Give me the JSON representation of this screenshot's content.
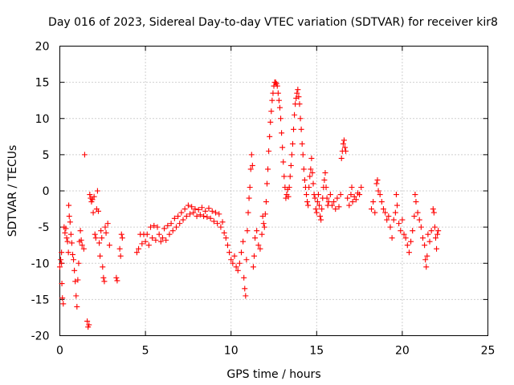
{
  "chart_data": {
    "type": "scatter",
    "title": "Day 016 of 2023, Sidereal Day-to-day VTEC variation (SDTVAR) for receiver kir8",
    "xlabel": "GPS time / hours",
    "ylabel": "SDTVAR / TECUs",
    "xlim": [
      0,
      25
    ],
    "ylim": [
      -20,
      20
    ],
    "x_ticks": [
      0,
      5,
      10,
      15,
      20,
      25
    ],
    "y_ticks": [
      -20,
      -15,
      -10,
      -5,
      0,
      5,
      10,
      15,
      20
    ],
    "x_tick_labels": [
      "0",
      "5",
      "10",
      "15",
      "20",
      "25"
    ],
    "y_tick_labels": [
      "-20",
      "-15",
      "-10",
      "-5",
      "0",
      "5",
      "10",
      "15",
      "20"
    ],
    "grid": true,
    "marker": "+",
    "series_color": "#ff0000",
    "points": [
      [
        0.0,
        -10.5
      ],
      [
        0.05,
        -9.5
      ],
      [
        0.1,
        -10.0
      ],
      [
        0.1,
        -8.5
      ],
      [
        0.12,
        -12.8
      ],
      [
        0.15,
        -14.8
      ],
      [
        0.2,
        -15.6
      ],
      [
        0.25,
        -5.0
      ],
      [
        0.3,
        -5.8
      ],
      [
        0.35,
        -5.2
      ],
      [
        0.4,
        -6.5
      ],
      [
        0.45,
        -7.0
      ],
      [
        0.5,
        -8.5
      ],
      [
        0.52,
        -2.0
      ],
      [
        0.55,
        -3.5
      ],
      [
        0.6,
        -4.3
      ],
      [
        0.65,
        -6.0
      ],
      [
        0.7,
        -7.2
      ],
      [
        0.75,
        -8.8
      ],
      [
        0.8,
        -9.5
      ],
      [
        0.85,
        -11.0
      ],
      [
        0.9,
        -12.5
      ],
      [
        0.95,
        -14.5
      ],
      [
        1.0,
        -16.0
      ],
      [
        1.05,
        -12.3
      ],
      [
        1.1,
        -10.0
      ],
      [
        1.15,
        -7.0
      ],
      [
        1.2,
        -5.5
      ],
      [
        1.25,
        -6.8
      ],
      [
        1.3,
        -7.5
      ],
      [
        1.4,
        -8.0
      ],
      [
        1.45,
        5.0
      ],
      [
        1.6,
        -18.0
      ],
      [
        1.65,
        -18.8
      ],
      [
        1.7,
        -18.5
      ],
      [
        1.75,
        -0.5
      ],
      [
        1.8,
        -1.0
      ],
      [
        1.85,
        -1.5
      ],
      [
        1.9,
        -1.2
      ],
      [
        1.95,
        -3.0
      ],
      [
        2.0,
        -0.8
      ],
      [
        2.05,
        -6.0
      ],
      [
        2.1,
        -6.5
      ],
      [
        2.15,
        -2.5
      ],
      [
        2.2,
        0.0
      ],
      [
        2.25,
        -2.8
      ],
      [
        2.3,
        -7.2
      ],
      [
        2.35,
        -9.0
      ],
      [
        2.4,
        -5.5
      ],
      [
        2.45,
        -6.5
      ],
      [
        2.5,
        -10.5
      ],
      [
        2.55,
        -12.0
      ],
      [
        2.6,
        -12.5
      ],
      [
        2.65,
        -5.0
      ],
      [
        2.7,
        -5.8
      ],
      [
        2.8,
        -4.5
      ],
      [
        2.9,
        -7.5
      ],
      [
        3.3,
        -12.0
      ],
      [
        3.35,
        -12.4
      ],
      [
        3.5,
        -8.0
      ],
      [
        3.55,
        -9.0
      ],
      [
        3.6,
        -6.0
      ],
      [
        3.65,
        -6.5
      ],
      [
        4.5,
        -8.5
      ],
      [
        4.6,
        -8.0
      ],
      [
        4.7,
        -6.0
      ],
      [
        4.8,
        -7.3
      ],
      [
        4.9,
        -6.0
      ],
      [
        5.0,
        -7.0
      ],
      [
        5.1,
        -6.0
      ],
      [
        5.2,
        -7.5
      ],
      [
        5.3,
        -5.0
      ],
      [
        5.4,
        -6.5
      ],
      [
        5.5,
        -4.8
      ],
      [
        5.6,
        -6.8
      ],
      [
        5.7,
        -5.0
      ],
      [
        5.8,
        -6.0
      ],
      [
        5.9,
        -7.0
      ],
      [
        6.0,
        -6.5
      ],
      [
        6.1,
        -5.2
      ],
      [
        6.2,
        -6.8
      ],
      [
        6.3,
        -4.8
      ],
      [
        6.4,
        -6.0
      ],
      [
        6.5,
        -4.5
      ],
      [
        6.6,
        -5.5
      ],
      [
        6.7,
        -3.8
      ],
      [
        6.8,
        -5.0
      ],
      [
        6.9,
        -3.5
      ],
      [
        7.0,
        -4.5
      ],
      [
        7.1,
        -3.0
      ],
      [
        7.2,
        -4.0
      ],
      [
        7.3,
        -2.5
      ],
      [
        7.4,
        -3.5
      ],
      [
        7.5,
        -2.0
      ],
      [
        7.6,
        -3.2
      ],
      [
        7.7,
        -2.2
      ],
      [
        7.8,
        -3.0
      ],
      [
        7.9,
        -2.5
      ],
      [
        8.0,
        -3.5
      ],
      [
        8.1,
        -2.6
      ],
      [
        8.2,
        -3.3
      ],
      [
        8.3,
        -2.3
      ],
      [
        8.4,
        -3.5
      ],
      [
        8.5,
        -2.8
      ],
      [
        8.6,
        -3.6
      ],
      [
        8.7,
        -2.4
      ],
      [
        8.8,
        -3.8
      ],
      [
        8.9,
        -2.8
      ],
      [
        9.0,
        -4.2
      ],
      [
        9.1,
        -3.0
      ],
      [
        9.2,
        -4.5
      ],
      [
        9.3,
        -3.2
      ],
      [
        9.4,
        -5.0
      ],
      [
        9.5,
        -4.3
      ],
      [
        9.6,
        -5.8
      ],
      [
        9.7,
        -6.5
      ],
      [
        9.8,
        -7.5
      ],
      [
        9.9,
        -8.5
      ],
      [
        10.0,
        -9.5
      ],
      [
        10.1,
        -10.0
      ],
      [
        10.2,
        -9.0
      ],
      [
        10.3,
        -10.5
      ],
      [
        10.4,
        -11.0
      ],
      [
        10.5,
        -10.0
      ],
      [
        10.6,
        -8.5
      ],
      [
        10.7,
        -7.0
      ],
      [
        10.75,
        -12.0
      ],
      [
        10.8,
        -13.5
      ],
      [
        10.85,
        -14.5
      ],
      [
        10.9,
        -9.5
      ],
      [
        10.95,
        -5.5
      ],
      [
        11.0,
        -3.0
      ],
      [
        11.05,
        -1.0
      ],
      [
        11.1,
        0.5
      ],
      [
        11.15,
        3.0
      ],
      [
        11.2,
        5.0
      ],
      [
        11.25,
        3.5
      ],
      [
        11.3,
        -10.5
      ],
      [
        11.35,
        -9.0
      ],
      [
        11.4,
        -6.5
      ],
      [
        11.5,
        -5.5
      ],
      [
        11.6,
        -7.5
      ],
      [
        11.7,
        -8.0
      ],
      [
        11.8,
        -6.0
      ],
      [
        11.85,
        -3.5
      ],
      [
        11.9,
        -4.5
      ],
      [
        11.95,
        -5.0
      ],
      [
        12.0,
        -3.2
      ],
      [
        12.05,
        -1.5
      ],
      [
        12.1,
        1.0
      ],
      [
        12.15,
        3.0
      ],
      [
        12.2,
        5.5
      ],
      [
        12.25,
        7.5
      ],
      [
        12.3,
        9.5
      ],
      [
        12.35,
        11.0
      ],
      [
        12.4,
        12.5
      ],
      [
        12.45,
        13.5
      ],
      [
        12.5,
        14.5
      ],
      [
        12.55,
        15.0
      ],
      [
        12.6,
        15.0
      ],
      [
        12.65,
        14.8
      ],
      [
        12.7,
        14.5
      ],
      [
        12.75,
        13.5
      ],
      [
        12.8,
        12.5
      ],
      [
        12.85,
        11.5
      ],
      [
        12.9,
        10.0
      ],
      [
        12.95,
        8.0
      ],
      [
        13.0,
        6.0
      ],
      [
        13.05,
        4.0
      ],
      [
        13.1,
        2.0
      ],
      [
        13.15,
        0.5
      ],
      [
        13.2,
        -1.0
      ],
      [
        13.25,
        -0.5
      ],
      [
        13.3,
        0.2
      ],
      [
        13.35,
        -0.8
      ],
      [
        13.4,
        0.5
      ],
      [
        13.45,
        2.0
      ],
      [
        13.5,
        3.5
      ],
      [
        13.55,
        5.0
      ],
      [
        13.6,
        6.5
      ],
      [
        13.65,
        8.5
      ],
      [
        13.7,
        10.5
      ],
      [
        13.75,
        12.0
      ],
      [
        13.8,
        12.8
      ],
      [
        13.85,
        13.5
      ],
      [
        13.9,
        14.0
      ],
      [
        13.95,
        13.0
      ],
      [
        14.0,
        12.0
      ],
      [
        14.05,
        10.0
      ],
      [
        14.1,
        8.5
      ],
      [
        14.15,
        6.5
      ],
      [
        14.2,
        5.0
      ],
      [
        14.25,
        3.0
      ],
      [
        14.3,
        1.5
      ],
      [
        14.35,
        0.5
      ],
      [
        14.4,
        -0.5
      ],
      [
        14.45,
        -1.5
      ],
      [
        14.5,
        -2.0
      ],
      [
        14.55,
        0.5
      ],
      [
        14.6,
        2.0
      ],
      [
        14.65,
        3.0
      ],
      [
        14.7,
        4.5
      ],
      [
        14.75,
        2.5
      ],
      [
        14.8,
        1.0
      ],
      [
        14.85,
        -0.5
      ],
      [
        14.9,
        -1.0
      ],
      [
        14.95,
        -2.5
      ],
      [
        15.0,
        -3.0
      ],
      [
        15.05,
        -1.5
      ],
      [
        15.1,
        -0.5
      ],
      [
        15.15,
        -2.0
      ],
      [
        15.2,
        -3.5
      ],
      [
        15.25,
        -4.0
      ],
      [
        15.3,
        -2.5
      ],
      [
        15.35,
        -1.0
      ],
      [
        15.4,
        0.5
      ],
      [
        15.45,
        1.5
      ],
      [
        15.5,
        2.5
      ],
      [
        15.55,
        0.5
      ],
      [
        15.6,
        -1.0
      ],
      [
        15.65,
        -2.0
      ],
      [
        15.7,
        -1.5
      ],
      [
        15.8,
        -0.5
      ],
      [
        15.9,
        -2.0
      ],
      [
        16.0,
        -1.5
      ],
      [
        16.1,
        -2.5
      ],
      [
        16.2,
        -1.0
      ],
      [
        16.3,
        -2.2
      ],
      [
        16.4,
        -0.5
      ],
      [
        16.45,
        4.5
      ],
      [
        16.5,
        5.5
      ],
      [
        16.55,
        6.5
      ],
      [
        16.6,
        7.0
      ],
      [
        16.65,
        6.0
      ],
      [
        16.7,
        5.5
      ],
      [
        16.8,
        -1.0
      ],
      [
        16.9,
        -2.0
      ],
      [
        17.0,
        -0.5
      ],
      [
        17.05,
        0.5
      ],
      [
        17.1,
        -1.5
      ],
      [
        17.2,
        -0.8
      ],
      [
        17.3,
        -1.2
      ],
      [
        17.4,
        -0.3
      ],
      [
        17.5,
        -0.5
      ],
      [
        17.6,
        0.5
      ],
      [
        18.2,
        -2.5
      ],
      [
        18.3,
        -1.5
      ],
      [
        18.4,
        -3.0
      ],
      [
        18.5,
        1.0
      ],
      [
        18.55,
        1.5
      ],
      [
        18.6,
        0.0
      ],
      [
        18.7,
        -0.5
      ],
      [
        18.8,
        -1.5
      ],
      [
        18.9,
        -2.5
      ],
      [
        19.0,
        -3.0
      ],
      [
        19.1,
        -4.0
      ],
      [
        19.2,
        -3.5
      ],
      [
        19.3,
        -5.0
      ],
      [
        19.4,
        -6.5
      ],
      [
        19.5,
        -4.0
      ],
      [
        19.6,
        -3.0
      ],
      [
        19.65,
        -0.5
      ],
      [
        19.7,
        -2.0
      ],
      [
        19.8,
        -4.5
      ],
      [
        19.9,
        -5.5
      ],
      [
        20.0,
        -4.0
      ],
      [
        20.1,
        -6.0
      ],
      [
        20.2,
        -6.5
      ],
      [
        20.3,
        -7.5
      ],
      [
        20.4,
        -8.5
      ],
      [
        20.5,
        -7.0
      ],
      [
        20.6,
        -5.5
      ],
      [
        20.7,
        -3.5
      ],
      [
        20.75,
        -0.5
      ],
      [
        20.8,
        -1.5
      ],
      [
        20.9,
        -3.0
      ],
      [
        21.0,
        -4.0
      ],
      [
        21.1,
        -5.0
      ],
      [
        21.2,
        -6.5
      ],
      [
        21.3,
        -7.5
      ],
      [
        21.35,
        -9.5
      ],
      [
        21.4,
        -10.5
      ],
      [
        21.45,
        -9.0
      ],
      [
        21.5,
        -6.0
      ],
      [
        21.6,
        -7.0
      ],
      [
        21.7,
        -5.5
      ],
      [
        21.8,
        -2.5
      ],
      [
        21.85,
        -3.0
      ],
      [
        21.9,
        -5.0
      ],
      [
        21.95,
        -6.5
      ],
      [
        22.0,
        -8.0
      ],
      [
        22.05,
        -6.0
      ],
      [
        22.1,
        -5.5
      ]
    ]
  }
}
